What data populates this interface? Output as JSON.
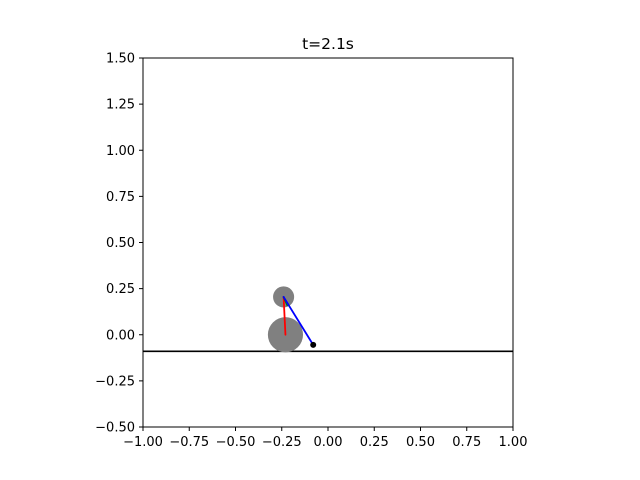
{
  "chart_data": {
    "type": "scatter",
    "title": "t=2.1s",
    "xlabel": "",
    "ylabel": "",
    "xlim": [
      -1.0,
      1.0
    ],
    "ylim": [
      -0.5,
      1.5
    ],
    "x_ticks": [
      -1.0,
      -0.75,
      -0.5,
      -0.25,
      0.0,
      0.25,
      0.5,
      0.75,
      1.0
    ],
    "x_tick_labels": [
      "−1.00",
      "−0.75",
      "−0.50",
      "−0.25",
      "0.00",
      "0.25",
      "0.50",
      "0.75",
      "1.00"
    ],
    "y_ticks": [
      -0.5,
      -0.25,
      0.0,
      0.25,
      0.5,
      0.75,
      1.0,
      1.25,
      1.5
    ],
    "y_tick_labels": [
      "−0.50",
      "−0.25",
      "0.00",
      "0.25",
      "0.50",
      "0.75",
      "1.00",
      "1.25",
      "1.50"
    ],
    "grid": false,
    "ground": {
      "y": -0.09,
      "color": "#000000"
    },
    "bodies": [
      {
        "x": -0.23,
        "y": 0.0,
        "radius": 0.095,
        "color": "#808080"
      },
      {
        "x": -0.24,
        "y": 0.205,
        "radius": 0.057,
        "color": "#808080"
      }
    ],
    "segments": [
      {
        "x1": -0.23,
        "y1": 0.0,
        "x2": -0.24,
        "y2": 0.205,
        "color": "#ff0000"
      },
      {
        "x1": -0.24,
        "y1": 0.205,
        "x2": -0.22,
        "y2": 0.16,
        "color": "#008000"
      },
      {
        "x1": -0.24,
        "y1": 0.205,
        "x2": -0.08,
        "y2": -0.055,
        "color": "#0000ff"
      }
    ],
    "points": [
      {
        "x": -0.08,
        "y": -0.055,
        "color": "#000000"
      }
    ]
  }
}
